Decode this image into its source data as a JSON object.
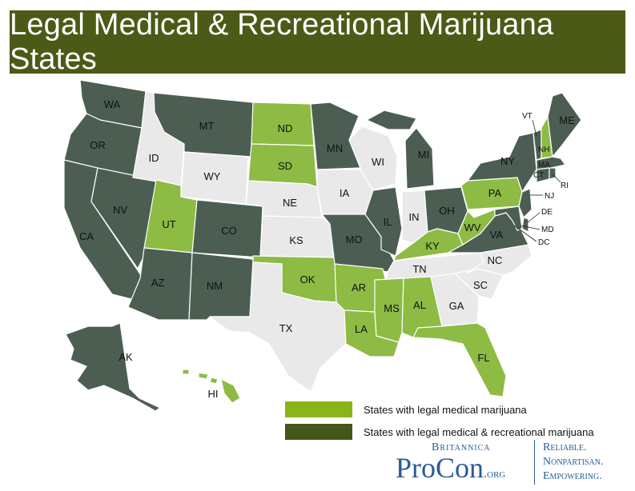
{
  "title": "Legal Medical & Recreational Marijuana States",
  "colors": {
    "recreational": "#4c5e52",
    "medical": "#8dbb44",
    "none": "#e9e9e9",
    "title_bg": "#4b5a16",
    "legend_recreational": "#44561a",
    "legend_medical": "#8ab51a",
    "brand": "#2a5b96"
  },
  "states": [
    {
      "abbr": "WA",
      "status": "recreational"
    },
    {
      "abbr": "OR",
      "status": "recreational"
    },
    {
      "abbr": "CA",
      "status": "recreational"
    },
    {
      "abbr": "NV",
      "status": "recreational"
    },
    {
      "abbr": "ID",
      "status": "none"
    },
    {
      "abbr": "MT",
      "status": "recreational"
    },
    {
      "abbr": "WY",
      "status": "none"
    },
    {
      "abbr": "UT",
      "status": "medical"
    },
    {
      "abbr": "AZ",
      "status": "recreational"
    },
    {
      "abbr": "CO",
      "status": "recreational"
    },
    {
      "abbr": "NM",
      "status": "recreational"
    },
    {
      "abbr": "ND",
      "status": "medical"
    },
    {
      "abbr": "SD",
      "status": "medical"
    },
    {
      "abbr": "NE",
      "status": "none"
    },
    {
      "abbr": "KS",
      "status": "none"
    },
    {
      "abbr": "OK",
      "status": "medical"
    },
    {
      "abbr": "TX",
      "status": "none"
    },
    {
      "abbr": "MN",
      "status": "recreational"
    },
    {
      "abbr": "IA",
      "status": "none"
    },
    {
      "abbr": "MO",
      "status": "recreational"
    },
    {
      "abbr": "AR",
      "status": "medical"
    },
    {
      "abbr": "LA",
      "status": "medical"
    },
    {
      "abbr": "WI",
      "status": "none"
    },
    {
      "abbr": "IL",
      "status": "recreational"
    },
    {
      "abbr": "MI",
      "status": "recreational"
    },
    {
      "abbr": "IN",
      "status": "none"
    },
    {
      "abbr": "OH",
      "status": "recreational"
    },
    {
      "abbr": "KY",
      "status": "medical"
    },
    {
      "abbr": "TN",
      "status": "none"
    },
    {
      "abbr": "MS",
      "status": "medical"
    },
    {
      "abbr": "AL",
      "status": "medical"
    },
    {
      "abbr": "GA",
      "status": "none"
    },
    {
      "abbr": "FL",
      "status": "medical"
    },
    {
      "abbr": "SC",
      "status": "none"
    },
    {
      "abbr": "NC",
      "status": "none"
    },
    {
      "abbr": "VA",
      "status": "recreational"
    },
    {
      "abbr": "WV",
      "status": "medical"
    },
    {
      "abbr": "PA",
      "status": "medical"
    },
    {
      "abbr": "NY",
      "status": "recreational"
    },
    {
      "abbr": "VT",
      "status": "recreational"
    },
    {
      "abbr": "NH",
      "status": "medical"
    },
    {
      "abbr": "ME",
      "status": "recreational"
    },
    {
      "abbr": "MA",
      "status": "recreational"
    },
    {
      "abbr": "RI",
      "status": "recreational"
    },
    {
      "abbr": "CT",
      "status": "recreational"
    },
    {
      "abbr": "NJ",
      "status": "recreational"
    },
    {
      "abbr": "DE",
      "status": "recreational"
    },
    {
      "abbr": "MD",
      "status": "recreational"
    },
    {
      "abbr": "DC",
      "status": "recreational"
    },
    {
      "abbr": "AK",
      "status": "recreational"
    },
    {
      "abbr": "HI",
      "status": "medical"
    }
  ],
  "legend": {
    "medical": "States with legal medical marijuana",
    "recreational": "States with legal medical & recreational marijuana"
  },
  "brand": {
    "britannica": "Britannica",
    "procon": "ProCon",
    "org": ".org",
    "tagline": [
      "Reliable.",
      "Nonpartisan.",
      "Empowering."
    ]
  }
}
